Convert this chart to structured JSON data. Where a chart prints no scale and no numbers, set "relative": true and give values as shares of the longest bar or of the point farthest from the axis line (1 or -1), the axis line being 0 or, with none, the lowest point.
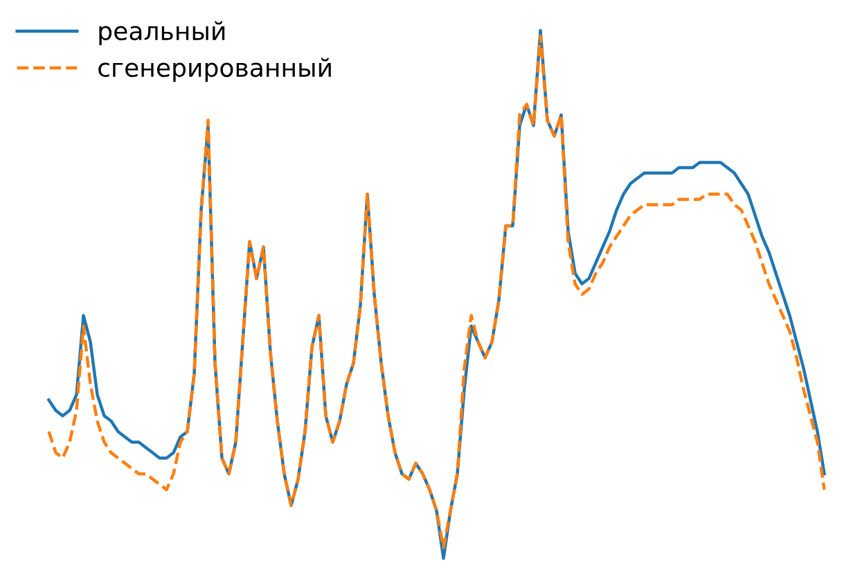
{
  "chart_data": {
    "type": "line",
    "relative": true,
    "legend": "top left",
    "categories": [
      null,
      null,
      null,
      null,
      null,
      null,
      null,
      null,
      null,
      null,
      null,
      null,
      null,
      null,
      null,
      null,
      null,
      null,
      null,
      null,
      null,
      null,
      null,
      null,
      null,
      null,
      null,
      null,
      null,
      null,
      null,
      null,
      null,
      null,
      null,
      null,
      null,
      null,
      null,
      null,
      null,
      null,
      null,
      null,
      null,
      null,
      null,
      null,
      null,
      null,
      null,
      null,
      null,
      null,
      null,
      null,
      null,
      null,
      null,
      null,
      null,
      null,
      null,
      null,
      null,
      null,
      null,
      null,
      null,
      null,
      null,
      null,
      null,
      null,
      null,
      null,
      null,
      null,
      null,
      null,
      null,
      null,
      null,
      null,
      null,
      null,
      null,
      null,
      null,
      null,
      null,
      null,
      null,
      null,
      null,
      null,
      null,
      null,
      null,
      null,
      null,
      null,
      null,
      null,
      null,
      null,
      null,
      null,
      null,
      null,
      null,
      null,
      null
    ],
    "series": [
      {
        "name": "реальный",
        "color": "#1f77b4",
        "line_style": "solid",
        "values": [
          0.3,
          0.28,
          0.27,
          0.28,
          0.31,
          0.46,
          0.41,
          0.31,
          0.27,
          0.26,
          0.24,
          0.23,
          0.22,
          0.22,
          0.21,
          0.2,
          0.19,
          0.19,
          0.2,
          0.23,
          0.24,
          0.35,
          0.66,
          0.82,
          0.37,
          0.19,
          0.16,
          0.22,
          0.41,
          0.6,
          0.53,
          0.59,
          0.39,
          0.26,
          0.16,
          0.1,
          0.15,
          0.24,
          0.4,
          0.46,
          0.27,
          0.22,
          0.26,
          0.33,
          0.37,
          0.48,
          0.69,
          0.5,
          0.37,
          0.27,
          0.2,
          0.16,
          0.15,
          0.18,
          0.16,
          0.13,
          0.09,
          0,
          0.09,
          0.16,
          0.32,
          0.44,
          0.41,
          0.38,
          0.41,
          0.49,
          0.63,
          0.63,
          0.82,
          0.86,
          0.82,
          1,
          0.83,
          0.8,
          0.84,
          0.62,
          0.54,
          0.52,
          0.53,
          0.56,
          0.59,
          0.62,
          0.66,
          0.69,
          0.71,
          0.72,
          0.73,
          0.73,
          0.73,
          0.73,
          0.73,
          0.74,
          0.74,
          0.74,
          0.75,
          0.75,
          0.75,
          0.75,
          0.74,
          0.73,
          0.71,
          0.69,
          0.65,
          0.61,
          0.58,
          0.54,
          0.5,
          0.46,
          0.41,
          0.36,
          0.3,
          0.24,
          0.16
        ]
      },
      {
        "name": "сгенерированный",
        "color": "#ff7f0e",
        "line_style": "dashed",
        "values": [
          0.24,
          0.2,
          0.19,
          0.22,
          0.28,
          0.44,
          0.33,
          0.26,
          0.22,
          0.2,
          0.19,
          0.18,
          0.17,
          0.16,
          0.16,
          0.15,
          0.14,
          0.13,
          0.16,
          0.22,
          0.24,
          0.35,
          0.66,
          0.83,
          0.37,
          0.19,
          0.16,
          0.22,
          0.41,
          0.6,
          0.53,
          0.59,
          0.39,
          0.26,
          0.16,
          0.1,
          0.15,
          0.24,
          0.4,
          0.46,
          0.27,
          0.22,
          0.26,
          0.33,
          0.37,
          0.48,
          0.69,
          0.5,
          0.37,
          0.27,
          0.2,
          0.16,
          0.15,
          0.18,
          0.16,
          0.13,
          0.09,
          0.02,
          0.09,
          0.16,
          0.36,
          0.46,
          0.41,
          0.38,
          0.41,
          0.49,
          0.63,
          0.63,
          0.84,
          0.86,
          0.82,
          0.99,
          0.83,
          0.8,
          0.84,
          0.6,
          0.52,
          0.5,
          0.51,
          0.54,
          0.56,
          0.59,
          0.61,
          0.63,
          0.65,
          0.66,
          0.67,
          0.67,
          0.67,
          0.67,
          0.67,
          0.68,
          0.68,
          0.68,
          0.68,
          0.69,
          0.69,
          0.69,
          0.69,
          0.67,
          0.66,
          0.63,
          0.6,
          0.56,
          0.52,
          0.49,
          0.46,
          0.43,
          0.38,
          0.32,
          0.27,
          0.22,
          0.13
        ]
      }
    ]
  }
}
